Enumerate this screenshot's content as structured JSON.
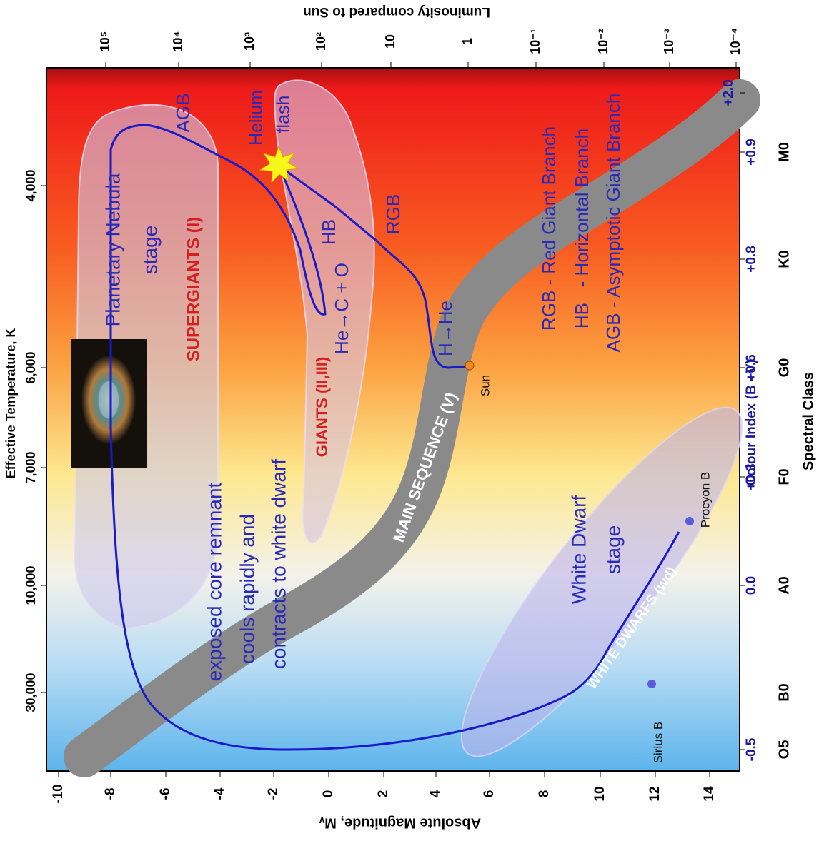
{
  "axes": {
    "magnitude": {
      "title": "Absolute Magnitude, Mᵥ",
      "ticks": [
        "-10",
        "-8",
        "-6",
        "-4",
        "-2",
        "0",
        "2",
        "4",
        "6",
        "8",
        "10",
        "12",
        "14"
      ]
    },
    "luminosity": {
      "title": "Luminosity compared to Sun",
      "ticks": [
        "10⁵",
        "10⁴",
        "10³",
        "10²",
        "10",
        "1",
        "10⁻¹",
        "10⁻²",
        "10⁻³",
        "10⁻⁴"
      ]
    },
    "temperature": {
      "title": "Effective Temperature, K",
      "ticks": [
        "4,000",
        "6,000",
        "7,000",
        "10,000",
        "30,000"
      ]
    },
    "colour_index": {
      "title": "Colour Index (B - V)",
      "ticks": [
        "-0.5",
        "0.0",
        "+0.3",
        "+0.6",
        "+0.8",
        "+0.9",
        "+2.0"
      ]
    },
    "spectral_class": {
      "title": "Spectral Class",
      "ticks": [
        "O5",
        "B0",
        "A0",
        "F0",
        "G0",
        "K0",
        "M0"
      ]
    }
  },
  "regions": {
    "supergiants": "SUPERGIANTS (I)",
    "giants": "GIANTS (II,III)",
    "main_sequence": "MAIN SEQUENCE (V)",
    "white_dwarfs": "WHITE DWARFS (wd)"
  },
  "stages": {
    "planetary_nebula": [
      "Planetary Nebula",
      "stage"
    ],
    "core_remnant": [
      "exposed core remnant",
      "cools rapidly and",
      "contracts to white dwarf"
    ],
    "white_dwarf": [
      "White Dwarf",
      "stage"
    ],
    "helium_flash": [
      "Helium",
      "flash"
    ]
  },
  "track_labels": {
    "agb": "AGB",
    "hb": "HB",
    "rgb": "RGB",
    "he_burning": "He→C + O",
    "h_burning": "H→He"
  },
  "stars": {
    "sun": "Sun",
    "sirius_b": "Sirius B",
    "procyon_b": "Procyon B"
  },
  "legend": [
    "RGB - Red Giant Branch",
    "HB   - Horizontal Branch",
    "AGB - Asymptotic Giant Branch"
  ]
}
